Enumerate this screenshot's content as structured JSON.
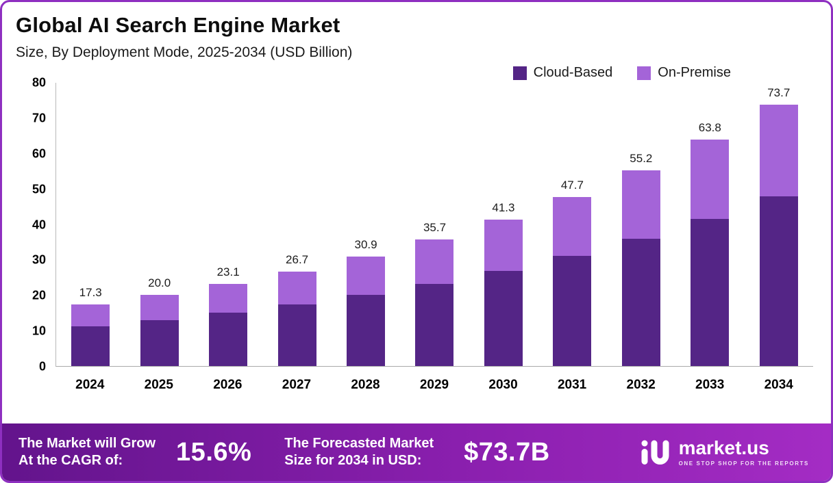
{
  "header": {
    "title": "Global AI Search Engine Market",
    "subtitle": "Size, By Deployment Mode, 2025-2034 (USD Billion)"
  },
  "legend": [
    {
      "label": "Cloud-Based",
      "color": "#542586"
    },
    {
      "label": "On-Premise",
      "color": "#a464d8"
    }
  ],
  "chart_data": {
    "type": "bar",
    "stacked": true,
    "title": "Global AI Search Engine Market",
    "subtitle": "Size, By Deployment Mode, 2025-2034 (USD Billion)",
    "categories": [
      "2024",
      "2025",
      "2026",
      "2027",
      "2028",
      "2029",
      "2030",
      "2031",
      "2032",
      "2033",
      "2034"
    ],
    "series": [
      {
        "name": "Cloud-Based",
        "color": "#542586",
        "values": [
          11.2,
          13.0,
          15.0,
          17.4,
          20.1,
          23.2,
          26.8,
          31.0,
          35.9,
          41.5,
          47.9
        ]
      },
      {
        "name": "On-Premise",
        "color": "#a464d8",
        "values": [
          6.1,
          7.0,
          8.1,
          9.3,
          10.8,
          12.5,
          14.5,
          16.7,
          19.3,
          22.3,
          25.8
        ]
      }
    ],
    "totals": [
      17.3,
      20.0,
      23.1,
      26.7,
      30.9,
      35.7,
      41.3,
      47.7,
      55.2,
      63.8,
      73.7
    ],
    "total_labels": [
      "17.3",
      "20.0",
      "23.1",
      "26.7",
      "30.9",
      "35.7",
      "41.3",
      "47.7",
      "55.2",
      "63.8",
      "73.7"
    ],
    "ylim": [
      0,
      80
    ],
    "yticks": [
      0,
      10,
      20,
      30,
      40,
      50,
      60,
      70,
      80
    ],
    "ylabel": "",
    "xlabel": "",
    "grid": false,
    "legend_position": "top-right"
  },
  "footer": {
    "cagr_label": "The Market will Grow\nAt the CAGR of:",
    "cagr_value": "15.6%",
    "forecast_label": "The Forecasted Market\nSize for 2034 in USD:",
    "forecast_value": "$73.7B",
    "brand": "market.us",
    "brand_tagline": "ONE STOP SHOP FOR THE REPORTS"
  }
}
